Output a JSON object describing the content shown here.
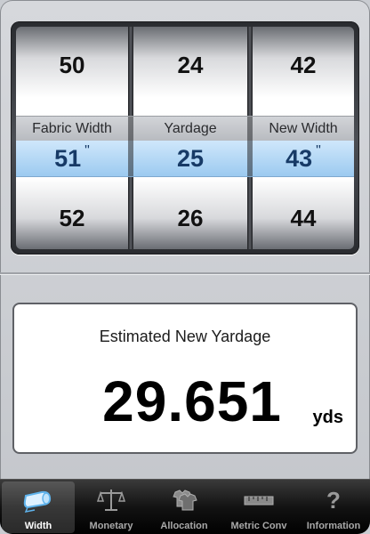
{
  "picker": {
    "columns": [
      {
        "above": "50",
        "label": "Fabric Width",
        "selected": "51",
        "unit": "\"",
        "below": "52"
      },
      {
        "above": "24",
        "label": "Yardage",
        "selected": "25",
        "unit": "",
        "below": "26"
      },
      {
        "above": "42",
        "label": "New Width",
        "selected": "43",
        "unit": "\"",
        "below": "44"
      }
    ]
  },
  "result": {
    "title": "Estimated New Yardage",
    "value": "29.651",
    "unit": "yds"
  },
  "tabbar": {
    "active": "Width",
    "tabs": [
      {
        "label": "Width",
        "icon": "fabric-roll-icon"
      },
      {
        "label": "Monetary",
        "icon": "scale-icon"
      },
      {
        "label": "Allocation",
        "icon": "shirts-icon"
      },
      {
        "label": "Metric Conv",
        "icon": "ruler-icon"
      },
      {
        "label": "Information",
        "icon": "question-icon"
      }
    ]
  },
  "colors": {
    "selection_band": "#9ccaf0",
    "selected_text": "#173a66",
    "tabbar_bg": "#121212"
  }
}
